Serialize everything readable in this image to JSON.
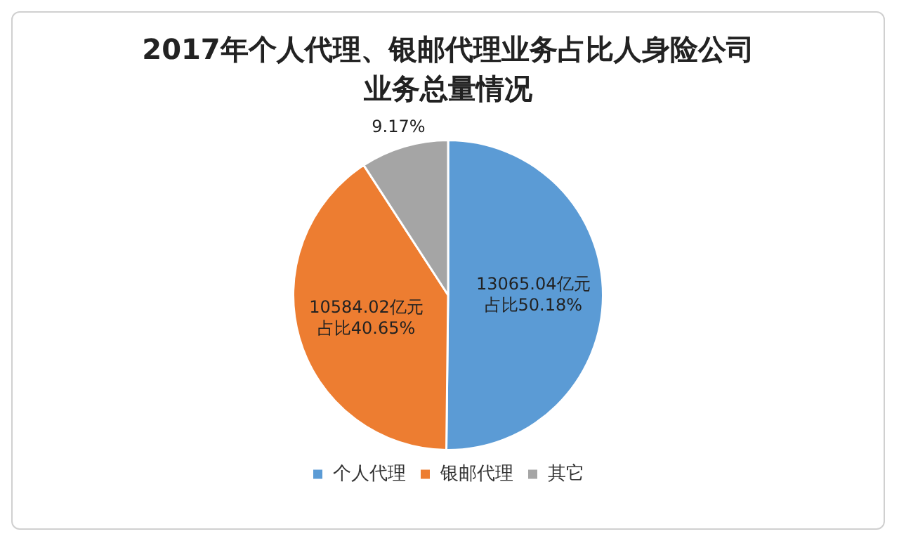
{
  "chart_data": {
    "type": "pie",
    "title": "2017年个人代理、银邮代理业务占比人身险公司业务总量情况",
    "categories": [
      "个人代理",
      "银邮代理",
      "其它"
    ],
    "values": [
      50.18,
      40.65,
      9.17
    ],
    "colors": [
      "#5b9bd5",
      "#ed7d31",
      "#a5a5a5"
    ],
    "value_labels": [
      "13065.04亿元占比50.18%",
      "10584.02亿元占比40.65%",
      "9.17%"
    ],
    "legend": "bottom"
  }
}
